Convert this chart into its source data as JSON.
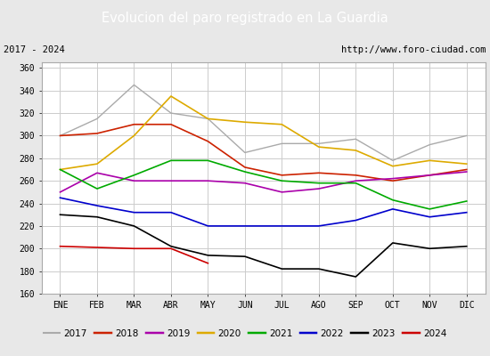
{
  "title": "Evolucion del paro registrado en La Guardia",
  "subtitle_left": "2017 - 2024",
  "subtitle_right": "http://www.foro-ciudad.com",
  "months": [
    "ENE",
    "FEB",
    "MAR",
    "ABR",
    "MAY",
    "JUN",
    "JUL",
    "AGO",
    "SEP",
    "OCT",
    "NOV",
    "DIC"
  ],
  "ylim": [
    160,
    365
  ],
  "yticks": [
    160,
    180,
    200,
    220,
    240,
    260,
    280,
    300,
    320,
    340,
    360
  ],
  "series": {
    "2017": {
      "color": "#aaaaaa",
      "lw": 1.0,
      "ls": "-",
      "values": [
        300,
        315,
        345,
        320,
        315,
        285,
        293,
        293,
        297,
        278,
        292,
        300
      ]
    },
    "2018": {
      "color": "#cc2200",
      "lw": 1.2,
      "ls": "-",
      "values": [
        300,
        302,
        310,
        310,
        295,
        272,
        265,
        267,
        265,
        260,
        265,
        270
      ]
    },
    "2019": {
      "color": "#aa00aa",
      "lw": 1.2,
      "ls": "-",
      "values": [
        250,
        267,
        260,
        260,
        260,
        258,
        250,
        253,
        260,
        262,
        265,
        268
      ]
    },
    "2020": {
      "color": "#ddaa00",
      "lw": 1.2,
      "ls": "-",
      "values": [
        270,
        275,
        300,
        335,
        315,
        312,
        310,
        290,
        287,
        273,
        278,
        275
      ]
    },
    "2021": {
      "color": "#00aa00",
      "lw": 1.2,
      "ls": "-",
      "values": [
        270,
        253,
        265,
        278,
        278,
        268,
        260,
        258,
        258,
        243,
        235,
        242
      ]
    },
    "2022": {
      "color": "#0000cc",
      "lw": 1.2,
      "ls": "-",
      "values": [
        245,
        238,
        232,
        232,
        220,
        220,
        220,
        220,
        225,
        235,
        228,
        232
      ]
    },
    "2023": {
      "color": "#000000",
      "lw": 1.2,
      "ls": "-",
      "values": [
        230,
        228,
        220,
        202,
        194,
        193,
        182,
        182,
        175,
        205,
        200,
        202
      ]
    },
    "2024": {
      "color": "#cc0000",
      "lw": 1.2,
      "ls": "-",
      "values": [
        202,
        201,
        200,
        200,
        187,
        null,
        null,
        null,
        null,
        null,
        null,
        null
      ]
    }
  },
  "bg_color": "#e8e8e8",
  "plot_bg": "#ffffff",
  "title_bg": "#5b9bd5",
  "title_color": "#ffffff",
  "grid_color": "#cccccc",
  "border_color": "#5b9bd5",
  "subtitle_border": "#5b9bd5",
  "legend_border": "#5b9bd5"
}
